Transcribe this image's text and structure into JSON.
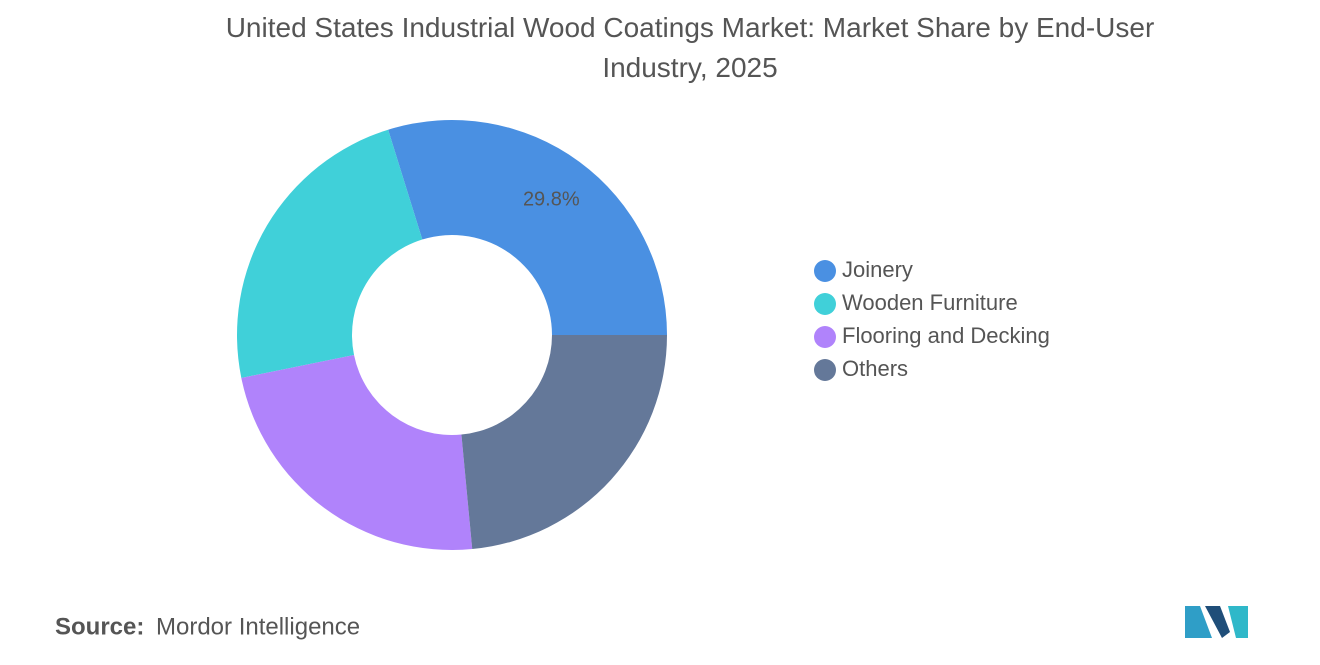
{
  "chart_data": {
    "type": "donut",
    "title": "United States Industrial Wood Coatings Market: Market Share by End-User Industry, 2025",
    "categories": [
      "Joinery",
      "Wooden Furniture",
      "Flooring and Decking",
      "Others"
    ],
    "values": [
      29.8,
      23.4,
      23.3,
      23.5
    ],
    "value_labels": [
      "29.8%",
      null,
      null,
      null
    ],
    "colors": [
      "#4a90e2",
      "#40d0d9",
      "#b083fb",
      "#647899"
    ],
    "legend": "right",
    "source_label": "Source:",
    "source": "Mordor Intelligence"
  }
}
